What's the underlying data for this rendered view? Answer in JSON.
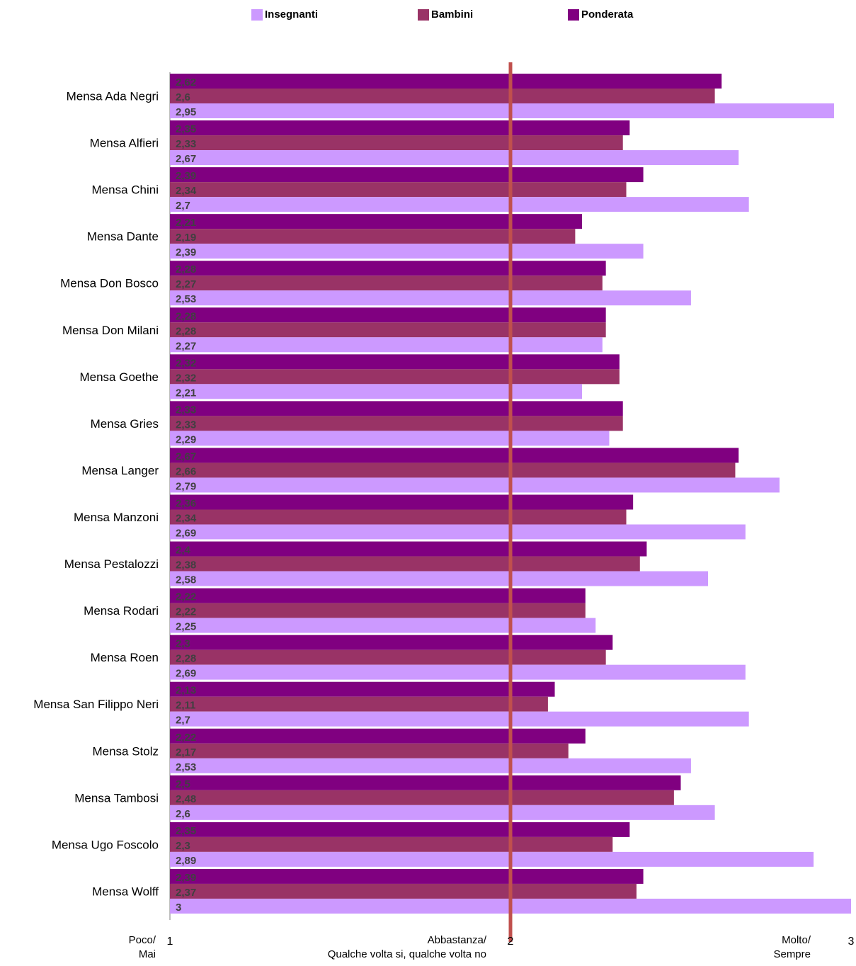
{
  "chart_data": {
    "type": "bar",
    "orientation": "horizontal",
    "categories": [
      "Mensa Ada Negri",
      "Mensa Alfieri",
      "Mensa Chini",
      "Mensa Dante",
      "Mensa Don Bosco",
      "Mensa Don Milani",
      "Mensa Goethe",
      "Mensa Gries",
      "Mensa Langer",
      "Mensa Manzoni",
      "Mensa Pestalozzi",
      "Mensa Rodari",
      "Mensa Roen",
      "Mensa San Filippo Neri",
      "Mensa Stolz",
      "Mensa Tambosi",
      "Mensa Ugo Foscolo",
      "Mensa Wolff"
    ],
    "series": [
      {
        "name": "Ponderata",
        "color": "#800080",
        "values": [
          2.62,
          2.35,
          2.39,
          2.21,
          2.28,
          2.28,
          2.32,
          2.33,
          2.67,
          2.36,
          2.4,
          2.22,
          2.3,
          2.13,
          2.22,
          2.5,
          2.35,
          2.39
        ],
        "labels": [
          "2,62",
          "2,35",
          "2,39",
          "2,21",
          "2,28",
          "2,28",
          "2,32",
          "2,33",
          "2,67",
          "2,36",
          "2,4",
          "2,22",
          "2,3",
          "2,13",
          "2,22",
          "2,5",
          "2,35",
          "2,39"
        ]
      },
      {
        "name": "Bambini",
        "color": "#993366",
        "values": [
          2.6,
          2.33,
          2.34,
          2.19,
          2.27,
          2.28,
          2.32,
          2.33,
          2.66,
          2.34,
          2.38,
          2.22,
          2.28,
          2.11,
          2.17,
          2.48,
          2.3,
          2.37
        ],
        "labels": [
          "2,6",
          "2,33",
          "2,34",
          "2,19",
          "2,27",
          "2,28",
          "2,32",
          "2,33",
          "2,66",
          "2,34",
          "2,38",
          "2,22",
          "2,28",
          "2,11",
          "2,17",
          "2,48",
          "2,3",
          "2,37"
        ]
      },
      {
        "name": "Insegnanti",
        "color": "#CC99FF",
        "values": [
          2.95,
          2.67,
          2.7,
          2.39,
          2.53,
          2.27,
          2.21,
          2.29,
          2.79,
          2.69,
          2.58,
          2.25,
          2.69,
          2.7,
          2.53,
          2.6,
          2.89,
          3
        ],
        "labels": [
          "2,95",
          "2,67",
          "2,7",
          "2,39",
          "2,53",
          "2,27",
          "2,21",
          "2,29",
          "2,79",
          "2,69",
          "2,58",
          "2,25",
          "2,69",
          "2,7",
          "2,53",
          "2,6",
          "2,89",
          "3"
        ]
      }
    ],
    "legend": {
      "placement": "top",
      "items": [
        {
          "name": "Insegnanti",
          "color": "#CC99FF"
        },
        {
          "name": "Bambini",
          "color": "#993366"
        },
        {
          "name": "Ponderata",
          "color": "#800080"
        }
      ]
    },
    "xlim": [
      1,
      3
    ],
    "xticks": [
      "1",
      "2",
      "3"
    ],
    "x_tick_titles": [
      {
        "line1": "Poco/",
        "line2": "Mai"
      },
      {
        "line1": "Abbastanza/",
        "line2": "Qualche volta si, qualche volta no"
      },
      {
        "line1": "Molto/",
        "line2": "Sempre"
      }
    ],
    "reference_line": {
      "value": 2,
      "color": "#C0504D"
    },
    "grid": false
  }
}
